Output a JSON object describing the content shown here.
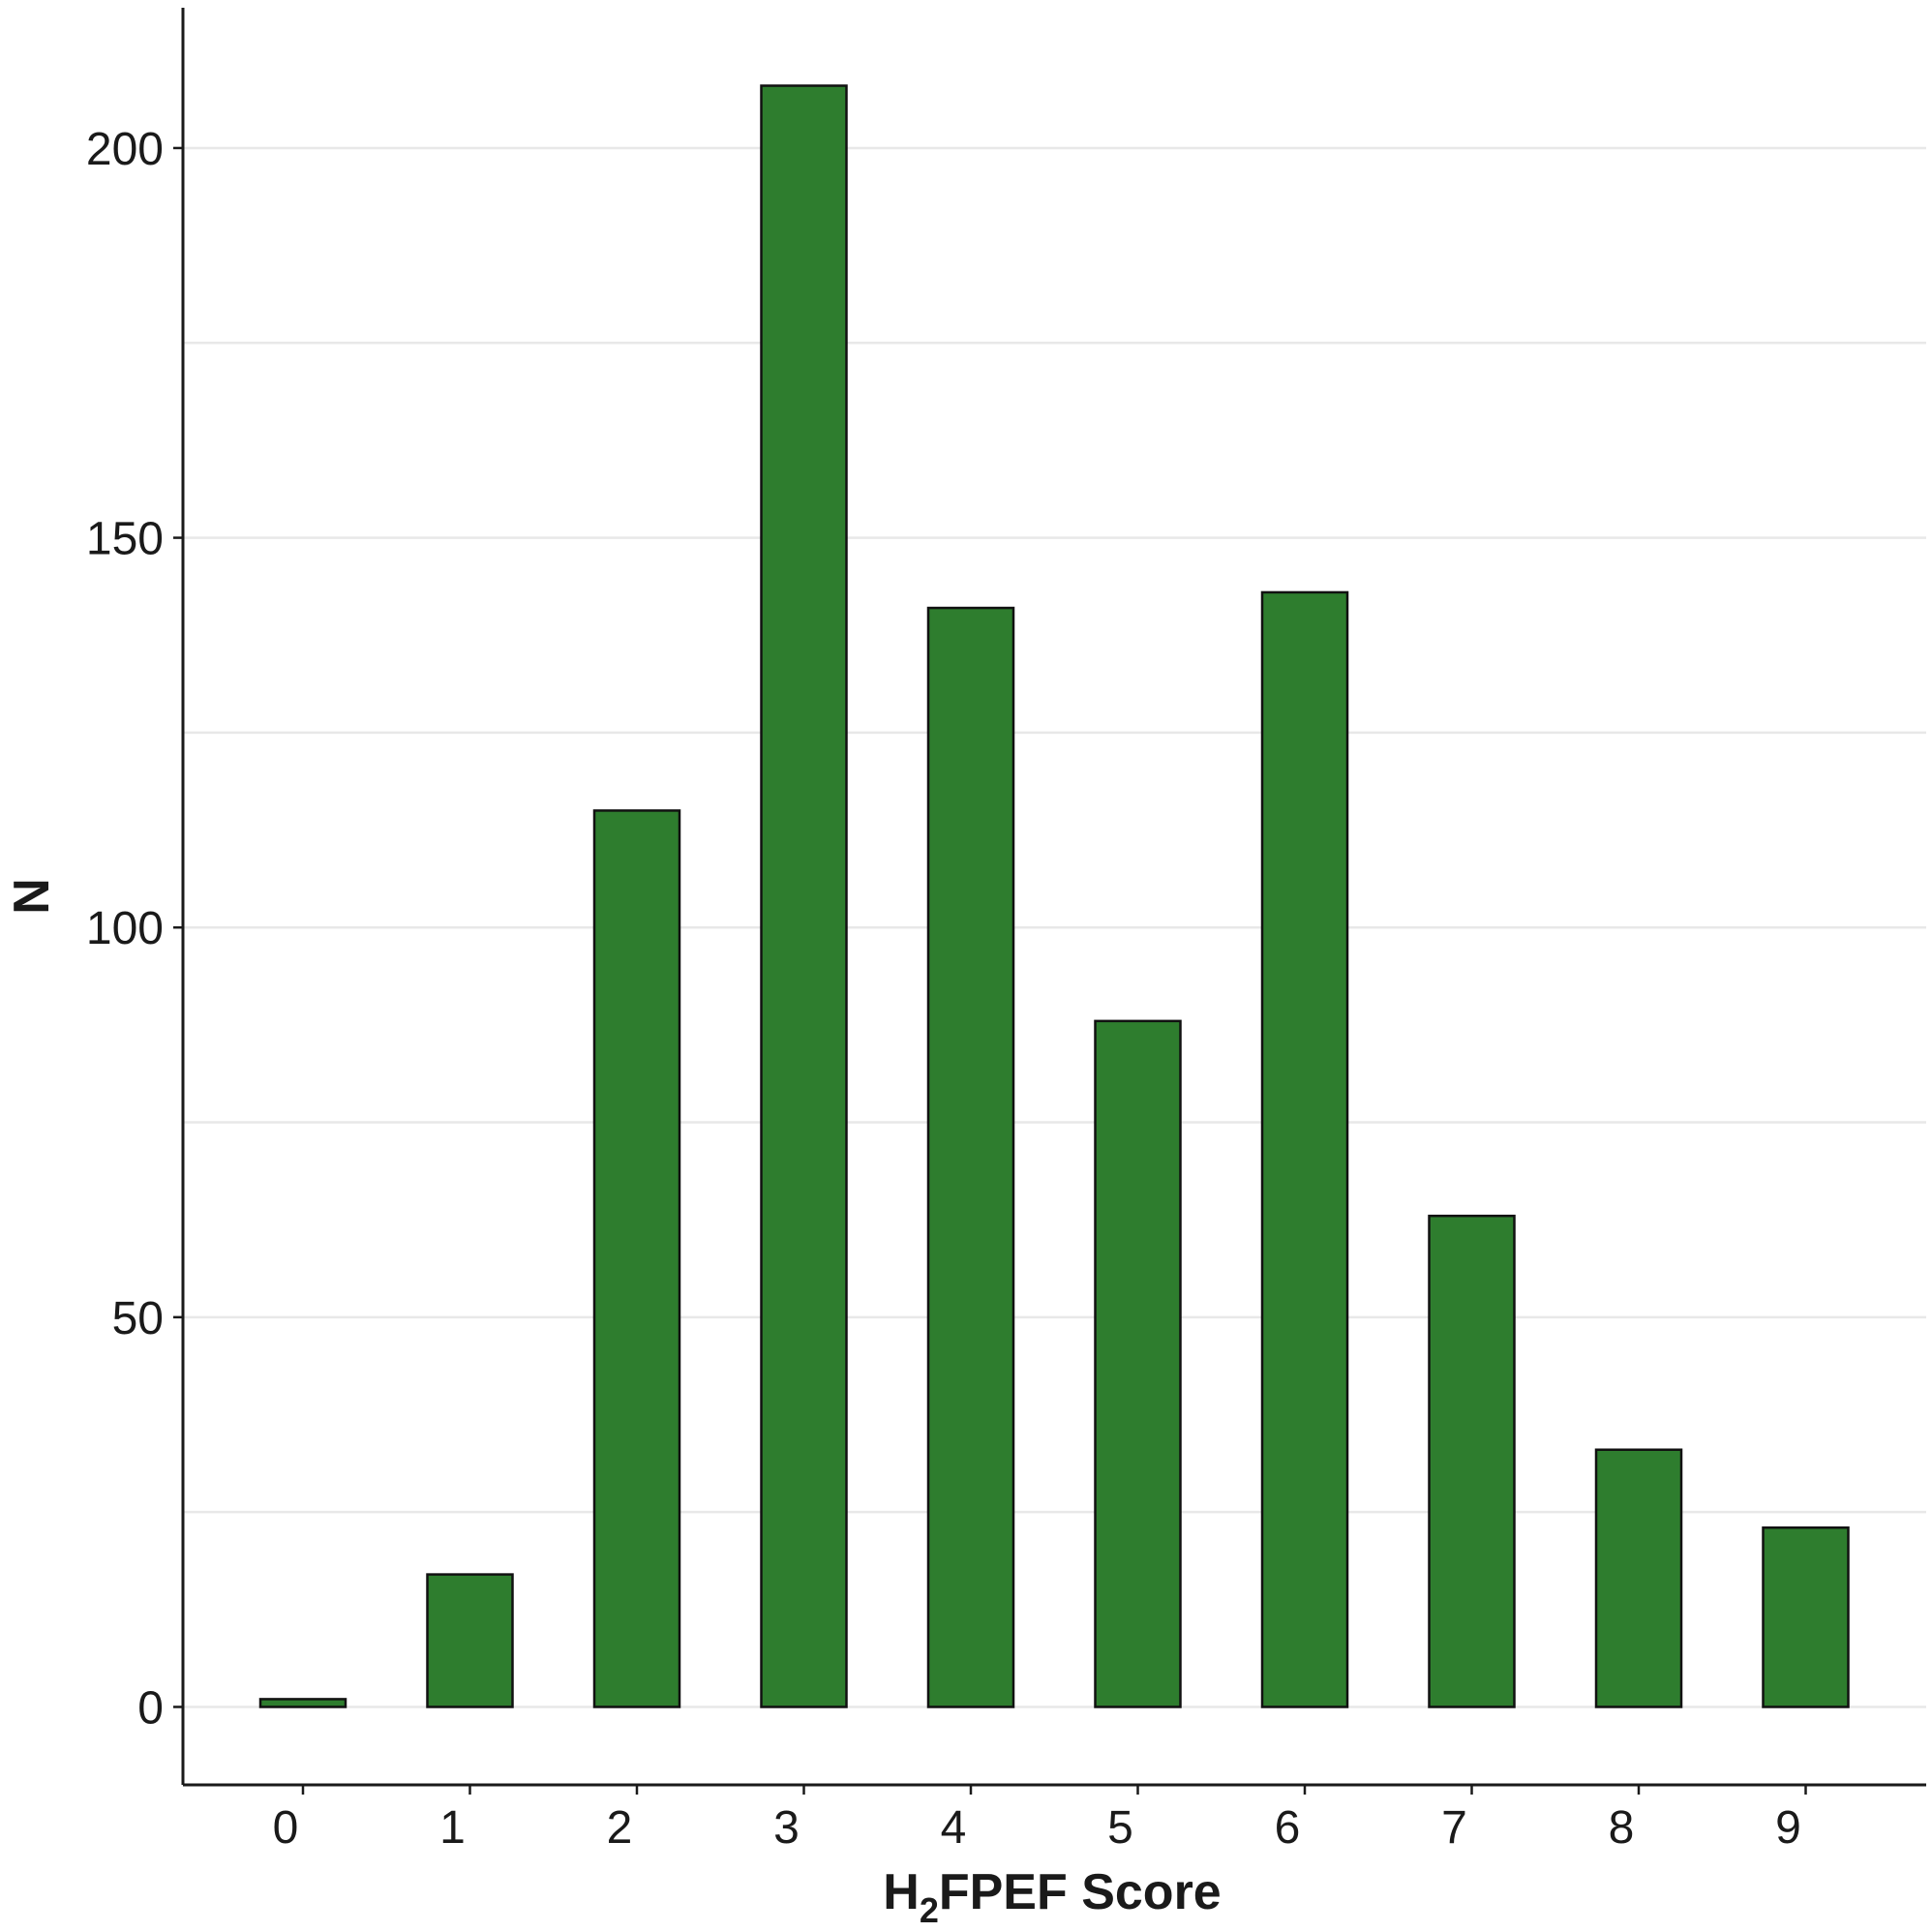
{
  "chart_data": {
    "type": "bar",
    "title": "",
    "xlabel": {
      "prefix": "H",
      "subscript": "2",
      "suffix": "FPEF Score"
    },
    "ylabel": "N",
    "categories": [
      "0",
      "1",
      "2",
      "3",
      "4",
      "5",
      "6",
      "7",
      "8",
      "9"
    ],
    "values": [
      1,
      17,
      115,
      208,
      141,
      88,
      143,
      63,
      33,
      23
    ],
    "ylim": [
      -10,
      218
    ],
    "yticks": [
      0,
      50,
      100,
      150,
      200
    ],
    "grid": "horizontal",
    "legend": "none",
    "colors": {
      "bar_fill": "#2e7d2e",
      "bar_stroke": "#111111",
      "grid": "#e8e8e8",
      "axis": "#1a1a1a"
    }
  }
}
